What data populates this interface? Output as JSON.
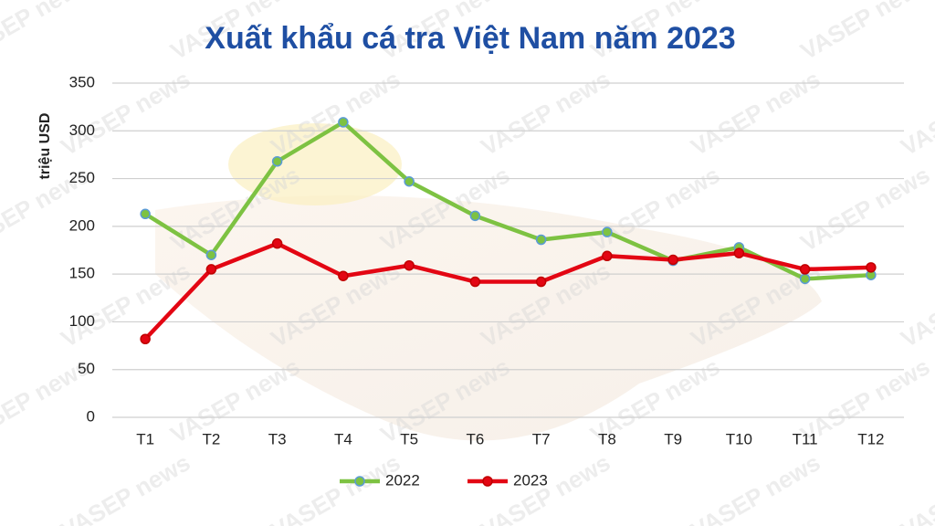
{
  "chart_data": {
    "type": "line",
    "title": "Xuất khẩu cá tra Việt Nam năm 2023",
    "y_label": "triệu USD",
    "watermark": "VASEP news",
    "categories": [
      "T1",
      "T2",
      "T3",
      "T4",
      "T5",
      "T6",
      "T7",
      "T8",
      "T9",
      "T10",
      "T11",
      "T12"
    ],
    "series": [
      {
        "name": "2022",
        "color": "#7dc242",
        "values": [
          213,
          170,
          268,
          309,
          247,
          211,
          186,
          194,
          164,
          178,
          145,
          149
        ]
      },
      {
        "name": "2023",
        "color": "#e30613",
        "values": [
          82,
          155,
          182,
          148,
          159,
          142,
          142,
          169,
          165,
          172,
          155,
          157
        ]
      }
    ],
    "ylim": [
      0,
      350
    ],
    "yticks": [
      0,
      50,
      100,
      150,
      200,
      250,
      300,
      350
    ],
    "grid": true,
    "legend": "bottom"
  }
}
